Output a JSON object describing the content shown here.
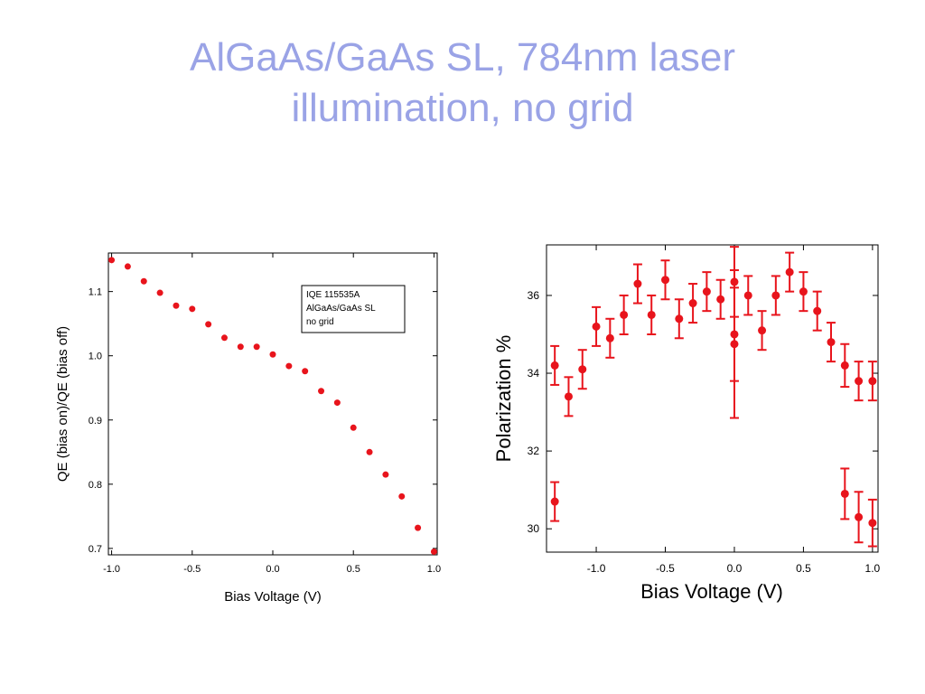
{
  "slide": {
    "title_line1": "AlGaAs/GaAs SL, 784nm laser",
    "title_line2": "illumination, no grid"
  },
  "chart_data": [
    {
      "type": "scatter",
      "xlabel": "Bias Voltage (V)",
      "ylabel": "QE (bias on)/QE (bias off)",
      "xlim": [
        -1.02,
        1.02
      ],
      "ylim": [
        0.69,
        1.16
      ],
      "xticks": [
        -1.0,
        -0.5,
        0.0,
        0.5,
        1.0
      ],
      "xtick_labels": [
        "-1.0",
        "-0.5",
        "0.0",
        "0.5",
        "1.0"
      ],
      "yticks": [
        0.7,
        0.8,
        0.9,
        1.0,
        1.1
      ],
      "ytick_labels": [
        "0.7",
        "0.8",
        "0.9",
        "1.0",
        "1.1"
      ],
      "legend_lines": [
        "IQE 115535A",
        "AlGaAs/GaAs SL",
        "no grid"
      ],
      "legend_position": "top-right",
      "color": "#e8141c",
      "series": [
        {
          "x": [
            -1.0,
            -0.9,
            -0.8,
            -0.7,
            -0.6,
            -0.5,
            -0.4,
            -0.3,
            -0.2,
            -0.1,
            0.0,
            0.1,
            0.2,
            0.3,
            0.4,
            0.5,
            0.6,
            0.7,
            0.8,
            0.9,
            1.0
          ],
          "y": [
            1.149,
            1.139,
            1.116,
            1.098,
            1.078,
            1.073,
            1.049,
            1.028,
            1.014,
            1.014,
            1.002,
            0.984,
            0.976,
            0.945,
            0.927,
            0.888,
            0.85,
            0.815,
            0.781,
            0.732,
            0.695
          ]
        }
      ]
    },
    {
      "type": "scatter",
      "xlabel": "Bias Voltage (V)",
      "ylabel": "Polarization %",
      "xlim": [
        -1.36,
        1.04
      ],
      "ylim": [
        29.4,
        37.3
      ],
      "xticks": [
        -1.0,
        -0.5,
        0.0,
        0.5,
        1.0
      ],
      "xtick_labels": [
        "-1.0",
        "-0.5",
        "0.0",
        "0.5",
        "1.0"
      ],
      "yticks": [
        30,
        32,
        34,
        36
      ],
      "ytick_labels": [
        "30",
        "32",
        "34",
        "36"
      ],
      "color": "#e8141c",
      "series": [
        {
          "x": [
            -1.3,
            -1.3,
            -1.2,
            -1.1,
            -1.0,
            -0.9,
            -0.8,
            -0.7,
            -0.6,
            -0.5,
            -0.4,
            -0.3,
            -0.2,
            -0.1,
            0.0,
            0.0,
            0.0,
            0.1,
            0.2,
            0.3,
            0.4,
            0.5,
            0.6,
            0.7,
            0.8,
            0.8,
            0.9,
            0.9,
            1.0,
            1.0
          ],
          "y": [
            30.7,
            34.2,
            33.4,
            34.1,
            35.2,
            34.9,
            35.5,
            36.3,
            35.5,
            36.4,
            35.4,
            35.8,
            36.1,
            35.9,
            36.35,
            35.0,
            34.75,
            36.0,
            35.1,
            36.0,
            36.6,
            36.1,
            35.6,
            34.8,
            30.9,
            34.2,
            30.3,
            33.8,
            30.15,
            33.8
          ],
          "err": [
            0.5,
            0.5,
            0.5,
            0.5,
            0.5,
            0.5,
            0.5,
            0.5,
            0.5,
            0.5,
            0.5,
            0.5,
            0.5,
            0.5,
            0.9,
            1.2,
            1.9,
            0.5,
            0.5,
            0.5,
            0.5,
            0.5,
            0.5,
            0.5,
            0.65,
            0.55,
            0.65,
            0.5,
            0.6,
            0.5
          ]
        }
      ]
    }
  ]
}
